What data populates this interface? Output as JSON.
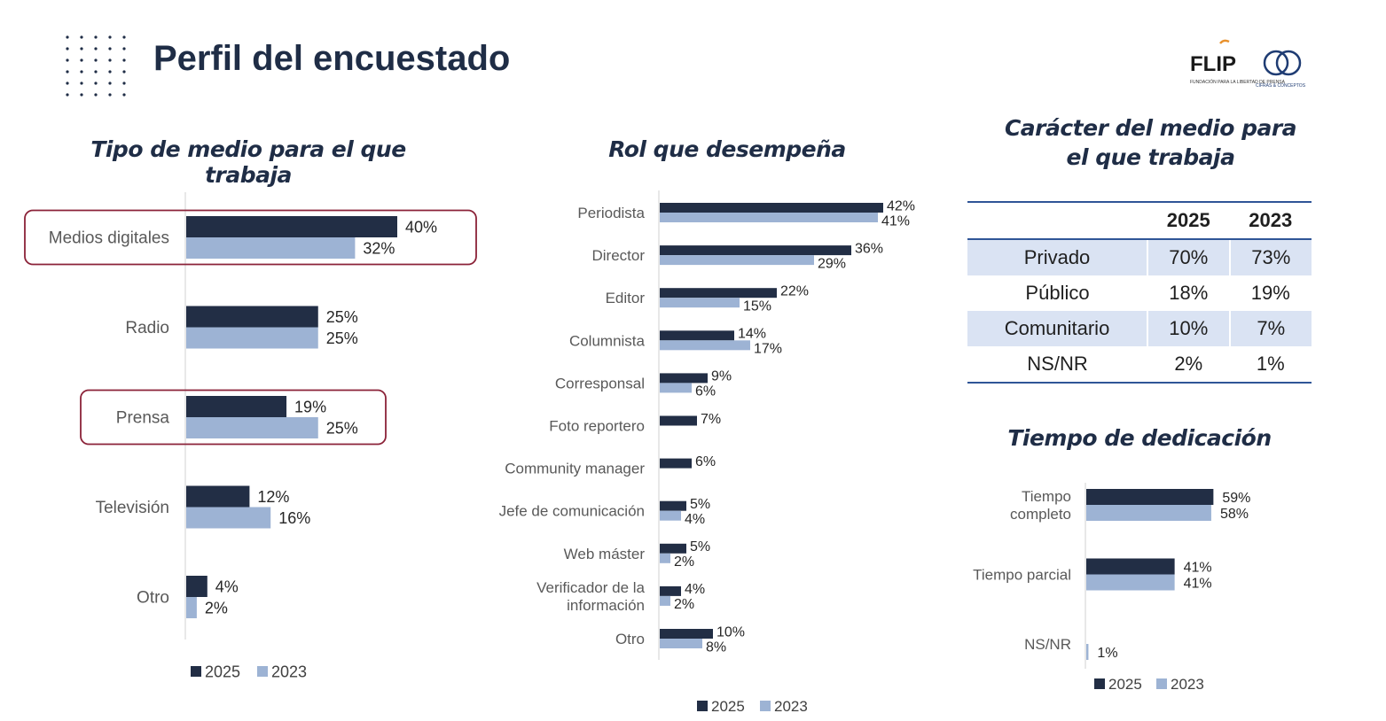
{
  "header": {
    "title": "Perfil del encuestado",
    "logos": {
      "flip_name": "FLIP",
      "flip_subtitle": "FUNDACIÓN PARA LA LIBERTAD DE PRENSA",
      "cifras_subtitle": "CIFRAS & CONCEPTOS"
    }
  },
  "colors": {
    "series_2025": "#222e45",
    "series_2023": "#9db3d4",
    "highlight": "#8b2238",
    "table_rule": "#2f5597",
    "table_shade": "#dae3f3"
  },
  "chart_data": [
    {
      "id": "tipo-medio",
      "type": "bar",
      "orientation": "horizontal",
      "title": "Tipo de medio para el que trabaja",
      "categories": [
        "Medios digitales",
        "Radio",
        "Prensa",
        "Televisión",
        "Otro"
      ],
      "series": [
        {
          "name": "2025",
          "values": [
            40,
            25,
            19,
            12,
            4
          ]
        },
        {
          "name": "2023",
          "values": [
            32,
            25,
            25,
            16,
            2
          ]
        }
      ],
      "value_suffix": "%",
      "highlighted_categories": [
        "Medios digitales",
        "Prensa"
      ],
      "legend": "bottom"
    },
    {
      "id": "rol",
      "type": "bar",
      "orientation": "horizontal",
      "title": "Rol que desempeña",
      "categories": [
        "Periodista",
        "Director",
        "Editor",
        "Columnista",
        "Corresponsal",
        "Foto reportero",
        "Community manager",
        "Jefe de comunicación",
        "Web máster",
        "Verificador de la información",
        "Otro"
      ],
      "series": [
        {
          "name": "2025",
          "values": [
            42,
            36,
            22,
            14,
            9,
            7,
            6,
            5,
            5,
            4,
            10
          ]
        },
        {
          "name": "2023",
          "values": [
            41,
            29,
            15,
            17,
            6,
            null,
            null,
            4,
            2,
            2,
            8
          ]
        }
      ],
      "value_suffix": "%",
      "legend": "bottom"
    },
    {
      "id": "caracter",
      "type": "table",
      "title": "Carácter del medio para el que trabaja",
      "columns": [
        "",
        "2025",
        "2023"
      ],
      "rows": [
        [
          "Privado",
          "70%",
          "73%"
        ],
        [
          "Público",
          "18%",
          "19%"
        ],
        [
          "Comunitario",
          "10%",
          "7%"
        ],
        [
          "NS/NR",
          "2%",
          "1%"
        ]
      ]
    },
    {
      "id": "tiempo",
      "type": "bar",
      "orientation": "horizontal",
      "title": "Tiempo de dedicación",
      "categories": [
        "Tiempo completo",
        "Tiempo parcial",
        "NS/NR"
      ],
      "series": [
        {
          "name": "2025",
          "values": [
            59,
            41,
            null
          ]
        },
        {
          "name": "2023",
          "values": [
            58,
            41,
            1
          ]
        }
      ],
      "value_suffix": "%",
      "legend": "bottom"
    }
  ]
}
